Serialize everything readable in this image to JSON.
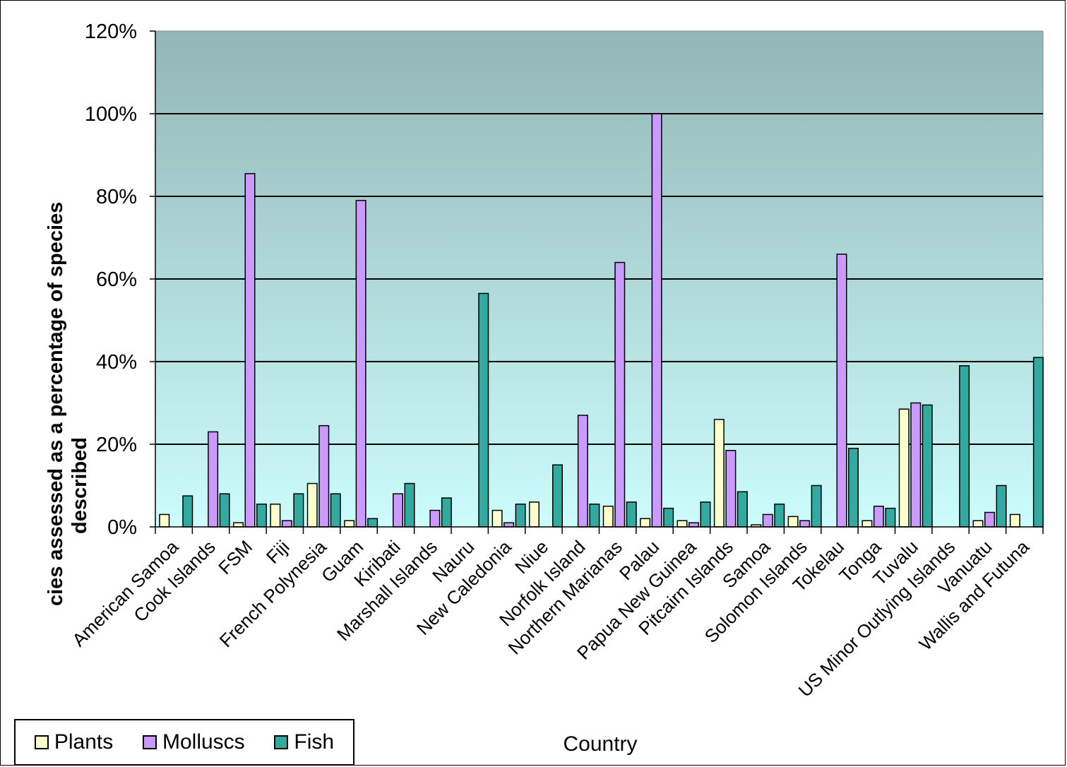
{
  "chart_data": {
    "type": "bar",
    "title": "",
    "xlabel": "Country",
    "ylabel": "Species assessed as a percentage of species described",
    "ylim": [
      0,
      1.2
    ],
    "yticks": [
      "0%",
      "20%",
      "40%",
      "60%",
      "80%",
      "100%",
      "120%"
    ],
    "grid": true,
    "legend_position": "bottom-left",
    "categories": [
      "American Samoa",
      "Cook Islands",
      "FSM",
      "Fiji",
      "French Polynesia",
      "Guam",
      "Kiribati",
      "Marshall Islands",
      "Nauru",
      "New Caledonia",
      "Niue",
      "Norfolk Island",
      "Northern Marianas",
      "Palau",
      "Papua New Guinea",
      "Pitcairn Islands",
      "Samoa",
      "Solomon Islands",
      "Tokelau",
      "Tonga",
      "Tuvalu",
      "US Minor Outlying Islands",
      "Vanuatu",
      "Wallis and Futuna"
    ],
    "series": [
      {
        "name": "Plants",
        "color": "#ffffcc",
        "values": [
          0.03,
          0.0,
          0.01,
          0.055,
          0.105,
          0.015,
          0.0,
          0.0,
          0.0,
          0.04,
          0.06,
          0.0,
          0.05,
          0.02,
          0.015,
          0.26,
          0.005,
          0.025,
          0.0,
          0.015,
          0.285,
          0.0,
          0.015,
          0.03
        ]
      },
      {
        "name": "Molluscs",
        "color": "#cc99ff",
        "values": [
          0.0,
          0.23,
          0.855,
          0.015,
          0.245,
          0.79,
          0.08,
          0.04,
          0.0,
          0.01,
          0.0,
          0.27,
          0.64,
          1.0,
          0.01,
          0.185,
          0.03,
          0.015,
          0.66,
          0.05,
          0.3,
          0.0,
          0.035,
          0.0
        ]
      },
      {
        "name": "Fish",
        "color": "#33aaa0",
        "values": [
          0.075,
          0.08,
          0.055,
          0.08,
          0.08,
          0.02,
          0.105,
          0.07,
          0.565,
          0.055,
          0.15,
          0.055,
          0.06,
          0.045,
          0.06,
          0.085,
          0.055,
          0.1,
          0.19,
          0.045,
          0.295,
          0.39,
          0.1,
          0.41
        ]
      }
    ]
  }
}
